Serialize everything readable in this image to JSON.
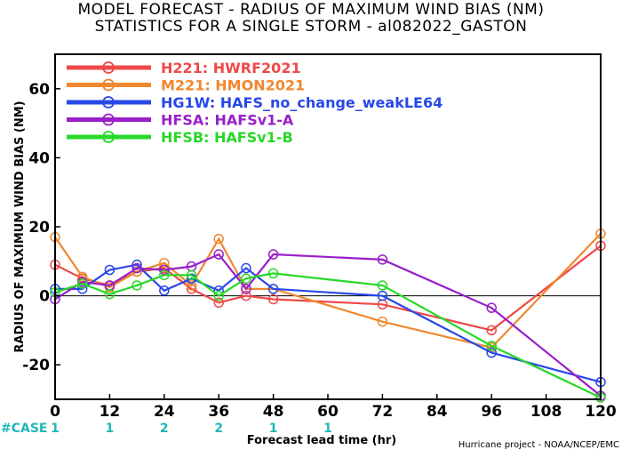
{
  "title_line1": "MODEL FORECAST - RADIUS OF MAXIMUM WIND BIAS (NM)",
  "title_line2": "STATISTICS FOR A SINGLE STORM - al082022_GASTON",
  "credit": "Hurricane project - NOAA/NCEP/EMC",
  "case_label": "#CASE",
  "colors": {
    "axis": "#000000",
    "zero_line": "#000000",
    "case": "#1fb8b8"
  },
  "chart_data": {
    "type": "line",
    "title": "MODEL FORECAST - RADIUS OF MAXIMUM WIND BIAS (NM)",
    "subtitle": "STATISTICS FOR A SINGLE STORM - al082022_GASTON",
    "xlabel": "Forecast lead time (hr)",
    "ylabel": "RADIUS OF MAXIMUM WIND BIAS (NM)",
    "xlim": [
      0,
      120
    ],
    "ylim": [
      -30,
      70
    ],
    "xticks": [
      0,
      12,
      24,
      36,
      48,
      60,
      72,
      84,
      96,
      108,
      120
    ],
    "yticks": [
      -20,
      0,
      20,
      40,
      60
    ],
    "grid": false,
    "legend_position": "top-left",
    "cases": [
      {
        "x": 0,
        "n": "1"
      },
      {
        "x": 12,
        "n": "1"
      },
      {
        "x": 24,
        "n": "2"
      },
      {
        "x": 36,
        "n": "2"
      },
      {
        "x": 48,
        "n": "1"
      },
      {
        "x": 60,
        "n": "1"
      }
    ],
    "series": [
      {
        "label": "H221: HWRF2021",
        "color": "#f04848",
        "x": [
          0,
          6,
          12,
          18,
          24,
          30,
          36,
          42,
          48,
          72,
          96,
          120
        ],
        "y": [
          9,
          5,
          3,
          7,
          8,
          2,
          -2,
          0,
          -1,
          -2.5,
          -10,
          14.5
        ]
      },
      {
        "label": "M221: HMON2021",
        "color": "#f08830",
        "x": [
          0,
          6,
          12,
          18,
          24,
          30,
          36,
          42,
          48,
          72,
          96,
          120
        ],
        "y": [
          17,
          5.5,
          2.5,
          7,
          9.5,
          3,
          16.5,
          2,
          2,
          -7.5,
          -15,
          18
        ]
      },
      {
        "label": "HG1W: HAFS_no_change_weakLE64",
        "color": "#2848e8",
        "x": [
          0,
          6,
          12,
          18,
          24,
          30,
          36,
          42,
          48,
          72,
          96,
          120
        ],
        "y": [
          2,
          2,
          7.5,
          9,
          1.5,
          5,
          1.5,
          8,
          2,
          0,
          -16.5,
          -25
        ]
      },
      {
        "label": "HFSA: HAFSv1-A",
        "color": "#9820c8",
        "x": [
          0,
          6,
          12,
          18,
          24,
          30,
          36,
          42,
          48,
          72,
          96,
          120
        ],
        "y": [
          -1,
          4,
          3,
          8,
          7.5,
          8.5,
          12,
          2,
          12,
          10.5,
          -3.5,
          -29
        ]
      },
      {
        "label": "HFSB: HAFSv1-B",
        "color": "#28d828",
        "x": [
          0,
          6,
          12,
          18,
          24,
          30,
          36,
          42,
          48,
          72,
          96,
          120
        ],
        "y": [
          1,
          3.5,
          0.5,
          3,
          6,
          6,
          0,
          5,
          6.5,
          3,
          -14.5,
          -29.5
        ]
      }
    ]
  }
}
